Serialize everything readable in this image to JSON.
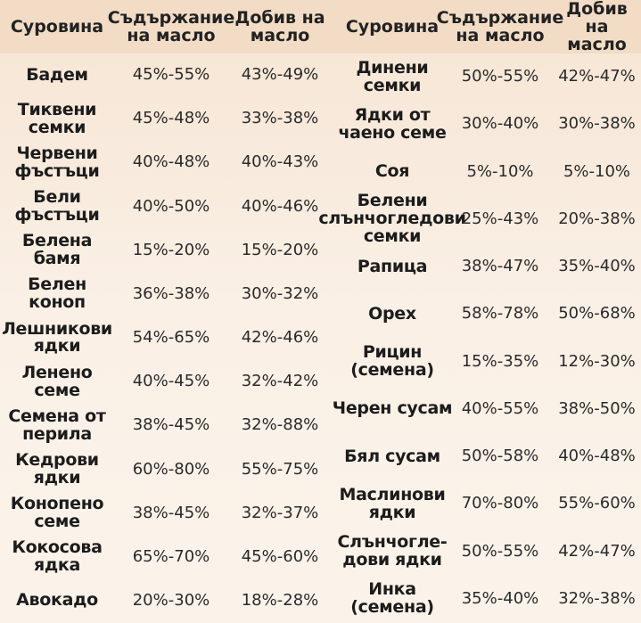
{
  "table": {
    "headers": [
      "Суровина",
      "Съдържание на масло",
      "Добив на масло"
    ],
    "left_rows": [
      [
        "Бадем",
        "45%-55%",
        "43%-49%"
      ],
      [
        "Тиквени семки",
        "45%-48%",
        "33%-38%"
      ],
      [
        "Червени фъстъци",
        "40%-48%",
        "40%-43%"
      ],
      [
        "Бели фъстъци",
        "40%-50%",
        "40%-46%"
      ],
      [
        "Белена бамя",
        "15%-20%",
        "15%-20%"
      ],
      [
        "Белен коноп",
        "36%-38%",
        "30%-32%"
      ],
      [
        "Лешникови ядки",
        "54%-65%",
        "42%-46%"
      ],
      [
        "Ленено семе",
        "40%-45%",
        "32%-42%"
      ],
      [
        "Семена от перила",
        "38%-45%",
        "32%-88%"
      ],
      [
        "Кедрови ядки",
        "60%-80%",
        "55%-75%"
      ],
      [
        "Конопено семе",
        "38%-45%",
        "32%-37%"
      ],
      [
        "Кокосова ядка",
        "65%-70%",
        "45%-60%"
      ],
      [
        "Авокадо",
        "20%-30%",
        "18%-28%"
      ]
    ],
    "right_rows": [
      [
        "Динени семки",
        "50%-55%",
        "42%-47%"
      ],
      [
        "Ядки от чаено семе",
        "30%-40%",
        "30%-38%"
      ],
      [
        "Соя",
        "5%-10%",
        "5%-10%"
      ],
      [
        "Белени слънчогледови семки",
        "25%-43%",
        "20%-38%"
      ],
      [
        "Рапица",
        "38%-47%",
        "35%-40%"
      ],
      [
        "Орех",
        "58%-78%",
        "50%-68%"
      ],
      [
        "Рицин (семена)",
        "15%-35%",
        "12%-30%"
      ],
      [
        "Черен сусам",
        "40%-55%",
        "38%-50%"
      ],
      [
        "Бял сусам",
        "50%-58%",
        "40%-48%"
      ],
      [
        "Маслинови ядки",
        "70%-80%",
        "55%-60%"
      ],
      [
        "Слънчогле-дови ядки",
        "50%-55%",
        "42%-47%"
      ],
      [
        "Инка (семена)",
        "35%-40%",
        "32%-38%"
      ]
    ]
  }
}
